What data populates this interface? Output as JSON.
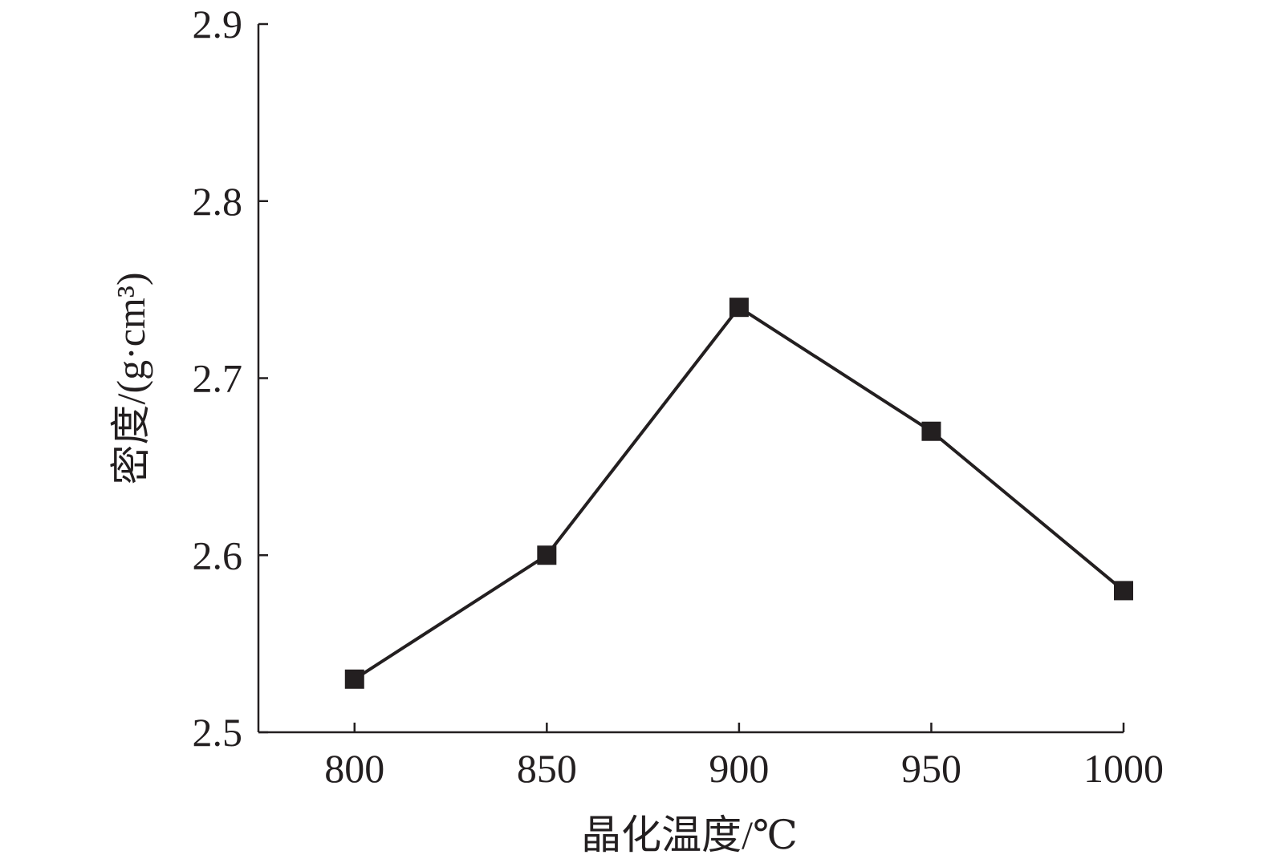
{
  "colors": {
    "ink": "#231f20",
    "background": "#ffffff"
  },
  "chart_data": {
    "type": "line",
    "title": "",
    "xlabel": "晶化温度/℃",
    "ylabel": "密度/(g·cm³)",
    "x": [
      800,
      850,
      900,
      950,
      1000
    ],
    "x_ticks": [
      "800",
      "850",
      "900",
      "950",
      "1000"
    ],
    "xlim": [
      775,
      1000
    ],
    "ylim": [
      2.5,
      2.9
    ],
    "y_ticks": [
      "2.5",
      "2.6",
      "2.7",
      "2.8",
      "2.9"
    ],
    "y_tick_values": [
      2.5,
      2.6,
      2.7,
      2.8,
      2.9
    ],
    "series": [
      {
        "values": [
          2.53,
          2.6,
          2.74,
          2.67,
          2.58
        ],
        "marker": "filled-square",
        "line": "solid",
        "color": "#231f20"
      }
    ],
    "grid": false,
    "legend": "none"
  }
}
